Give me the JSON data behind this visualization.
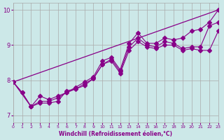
{
  "xlabel": "Windchill (Refroidissement éolien,°C)",
  "ylabel": "",
  "xlim": [
    0,
    23
  ],
  "ylim": [
    6.8,
    10.2
  ],
  "yticks": [
    7,
    8,
    9,
    10
  ],
  "xticks": [
    0,
    1,
    2,
    3,
    4,
    5,
    6,
    7,
    8,
    9,
    10,
    11,
    12,
    13,
    14,
    15,
    16,
    17,
    18,
    19,
    20,
    21,
    22,
    23
  ],
  "bg_color": "#cce8e8",
  "grid_color": "#aaaaaa",
  "line_color": "#880088",
  "lines": [
    {
      "x": [
        0,
        1,
        2,
        3,
        4,
        5,
        6,
        7,
        8,
        9,
        10,
        11,
        12,
        13,
        14,
        15,
        16,
        17,
        18,
        19,
        20,
        21,
        22,
        23
      ],
      "y": [
        7.95,
        7.65,
        7.25,
        7.55,
        7.45,
        7.55,
        7.65,
        7.8,
        7.95,
        8.1,
        8.55,
        8.65,
        8.3,
        9.05,
        9.35,
        9.05,
        9.05,
        9.2,
        9.15,
        9.2,
        9.4,
        9.45,
        9.65,
        10.0
      ],
      "markers": true
    },
    {
      "x": [
        0,
        1,
        2,
        3,
        4,
        5,
        6,
        7,
        8,
        9,
        10,
        11,
        12,
        13,
        14,
        15,
        16,
        17,
        18,
        19,
        20,
        21,
        22,
        23
      ],
      "y": [
        7.95,
        7.65,
        7.25,
        7.35,
        7.35,
        7.4,
        7.7,
        7.75,
        7.9,
        8.05,
        8.45,
        8.6,
        8.25,
        8.95,
        9.2,
        9.0,
        8.95,
        9.1,
        9.05,
        8.9,
        8.95,
        8.95,
        9.55,
        9.65
      ],
      "markers": true
    },
    {
      "x": [
        0,
        2,
        3,
        4,
        5,
        6,
        7,
        8,
        9,
        10,
        11,
        12,
        13,
        14,
        15,
        16,
        17,
        18,
        19,
        20,
        21,
        22,
        23
      ],
      "y": [
        7.95,
        7.25,
        7.4,
        7.4,
        7.5,
        7.65,
        7.75,
        7.85,
        8.05,
        8.45,
        8.55,
        8.2,
        8.85,
        9.1,
        8.95,
        8.9,
        9.0,
        9.0,
        8.85,
        8.9,
        8.85,
        8.85,
        9.4
      ],
      "markers": true
    },
    {
      "x": [
        0,
        23
      ],
      "y": [
        7.95,
        10.0
      ],
      "markers": false
    }
  ]
}
